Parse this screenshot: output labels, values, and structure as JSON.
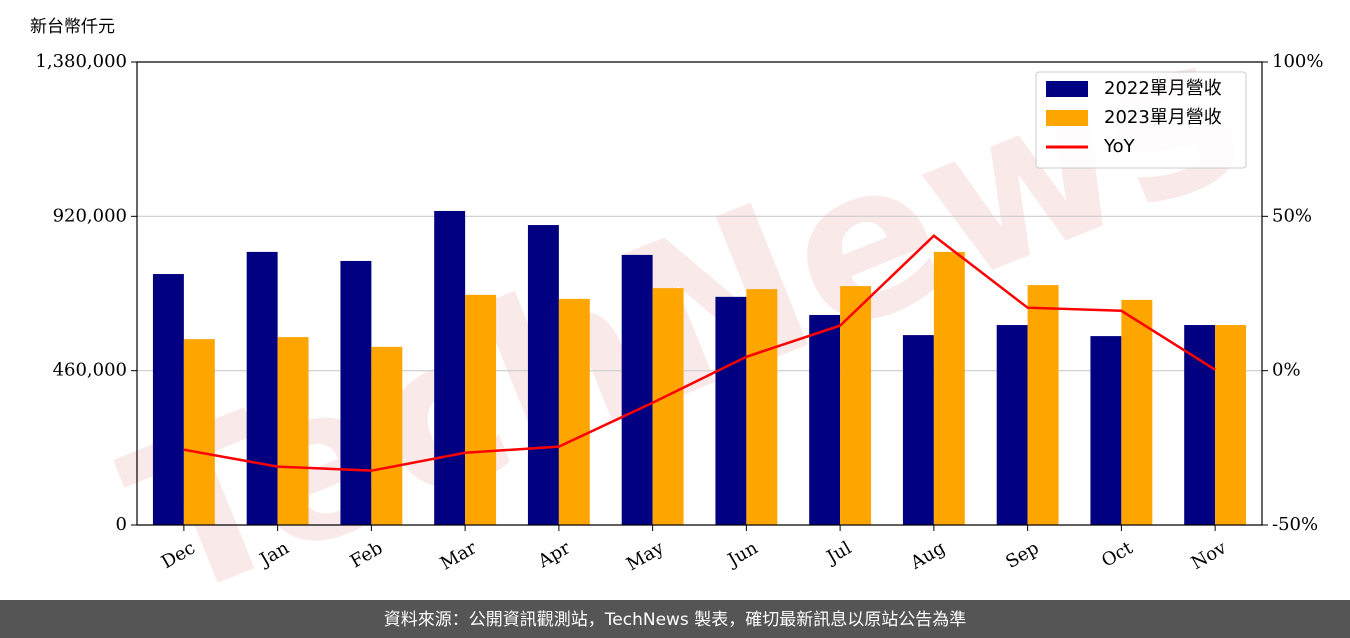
{
  "chart_data": {
    "type": "bar",
    "unit_label": "新台幣仟元",
    "watermark": "TechNews",
    "footer": "資料來源：公開資訊觀測站，TechNews 製表，確切最新訊息以原站公告為準",
    "categories": [
      "Dec",
      "Jan",
      "Feb",
      "Mar",
      "Apr",
      "May",
      "Jun",
      "Jul",
      "Aug",
      "Sep",
      "Oct",
      "Nov"
    ],
    "series": [
      {
        "name": "2022單月營收",
        "color": "#000080",
        "type": "bar",
        "values": [
          748000,
          814000,
          787000,
          936000,
          894000,
          805000,
          680000,
          626000,
          566000,
          596000,
          563000,
          596000
        ]
      },
      {
        "name": "2023單月營收",
        "color": "#ffa500",
        "type": "bar",
        "values": [
          554000,
          560000,
          531000,
          686000,
          674000,
          706000,
          703000,
          712000,
          814000,
          715000,
          671000,
          596000
        ]
      },
      {
        "name": "YoY",
        "color": "#ff0000",
        "type": "line",
        "axis": "y2",
        "values": [
          -25.6,
          -31.1,
          -32.4,
          -26.6,
          -24.6,
          -10.4,
          4.5,
          14.6,
          43.7,
          20.4,
          19.4,
          0.3
        ]
      }
    ],
    "ylim": [
      0,
      1380000
    ],
    "yticks": [
      0,
      {
        "value": 460000,
        "label": "460,000"
      },
      {
        "value": 920000,
        "label": "920,000"
      },
      {
        "value": 1380000,
        "label": "1,380,000"
      }
    ],
    "y2lim": [
      -50,
      100
    ],
    "y2ticks": [
      {
        "value": -50,
        "label": "-50%"
      },
      {
        "value": 0,
        "label": "0%"
      },
      {
        "value": 50,
        "label": "50%"
      },
      {
        "value": 100,
        "label": "100%"
      }
    ],
    "grid": true,
    "legend": "upper right"
  }
}
